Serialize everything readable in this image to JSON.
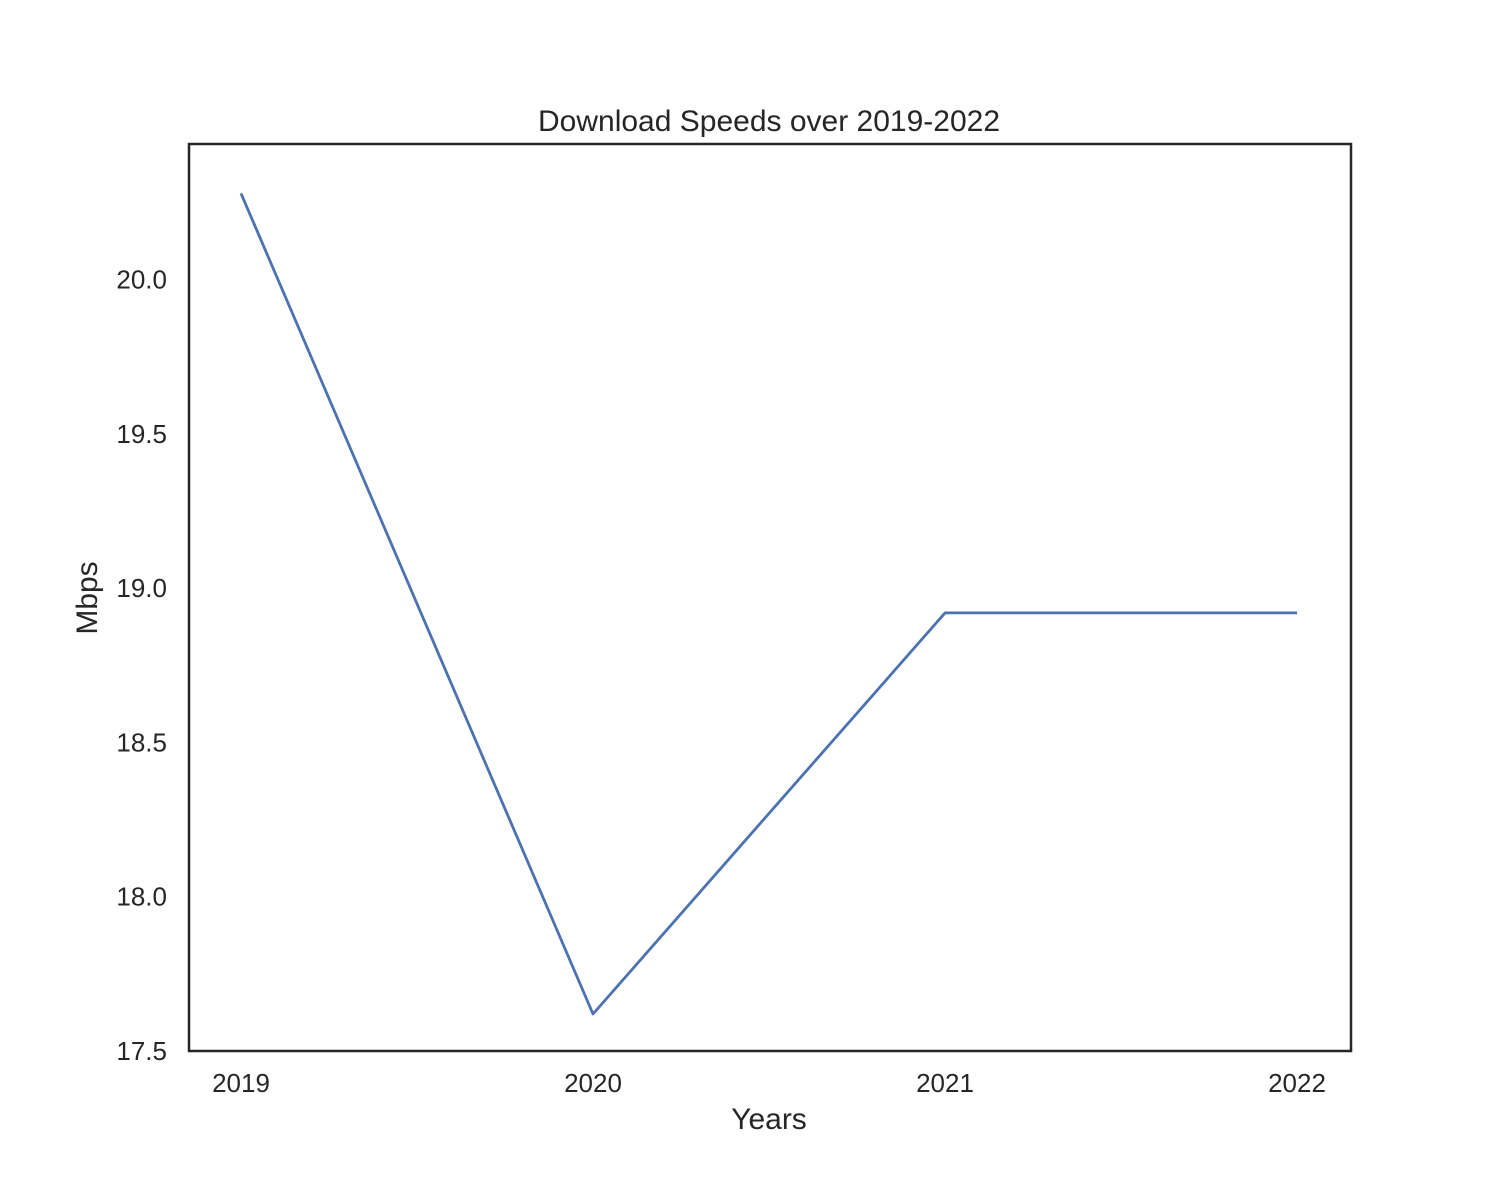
{
  "chart_data": {
    "type": "line",
    "title": "Download Speeds over 2019-2022",
    "xlabel": "Years",
    "ylabel": "Mbps",
    "x": [
      "2019",
      "2020",
      "2021",
      "2022"
    ],
    "series": [
      {
        "values": [
          20.28,
          17.62,
          18.92,
          18.92
        ],
        "color": "#4c72b0"
      }
    ],
    "ylim": [
      17.5,
      20.44
    ],
    "yticks": [
      "17.5",
      "18.0",
      "18.5",
      "19.0",
      "19.5",
      "20.0"
    ],
    "grid": false,
    "legend": "none"
  }
}
